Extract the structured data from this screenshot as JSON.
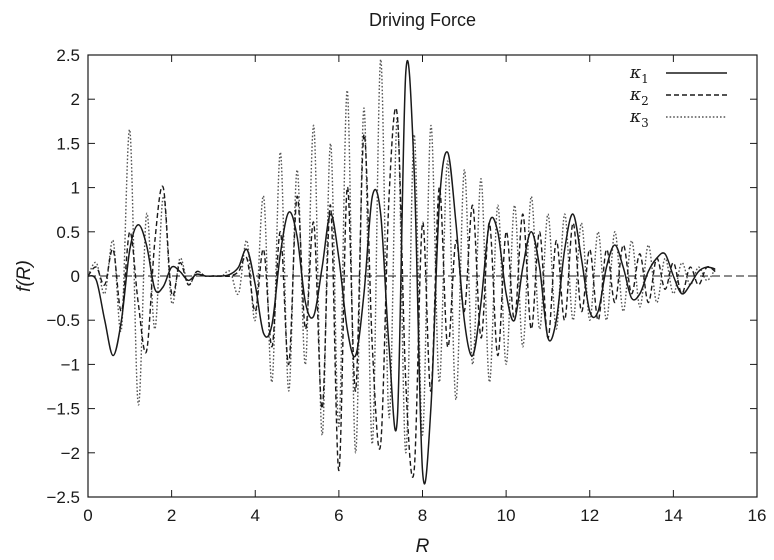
{
  "chart_data": {
    "type": "line",
    "title": "Driving Force",
    "xlabel": "R",
    "ylabel": "f(R)",
    "xlim": [
      0,
      16
    ],
    "ylim": [
      -2.5,
      2.5
    ],
    "xticks": [
      "0",
      "2",
      "4",
      "6",
      "8",
      "10",
      "12",
      "14",
      "16"
    ],
    "yticks": [
      "2.5",
      "2",
      "1.5",
      "1",
      "0.5",
      "0",
      "−0.5",
      "−1",
      "−1.5",
      "−2",
      "−2.5"
    ],
    "grid": false,
    "legend_position": "top-right",
    "series": [
      {
        "name": "κ1",
        "name_symbol": "κ",
        "name_sub": "1",
        "style": "solid",
        "x": [
          0.0,
          0.2,
          0.4,
          0.6,
          0.8,
          1.0,
          1.2,
          1.4,
          1.6,
          1.8,
          2.0,
          2.2,
          2.4,
          2.6,
          2.8,
          3.0,
          3.2,
          3.4,
          3.6,
          3.8,
          4.0,
          4.2,
          4.4,
          4.6,
          4.8,
          5.0,
          5.2,
          5.4,
          5.6,
          5.8,
          6.0,
          6.2,
          6.4,
          6.6,
          6.8,
          7.0,
          7.2,
          7.4,
          7.6,
          7.8,
          8.0,
          8.2,
          8.4,
          8.6,
          8.8,
          9.0,
          9.2,
          9.4,
          9.6,
          9.8,
          10.0,
          10.2,
          10.4,
          10.6,
          10.8,
          11.0,
          11.2,
          11.4,
          11.6,
          11.8,
          12.0,
          12.2,
          12.4,
          12.6,
          12.8,
          13.0,
          13.2,
          13.4,
          13.6,
          13.8,
          14.0,
          14.2,
          14.4,
          14.6,
          14.8,
          15.0
        ],
        "values": [
          0.0,
          -0.05,
          -0.5,
          -0.9,
          -0.5,
          0.3,
          0.58,
          0.35,
          -0.15,
          -0.12,
          0.1,
          0.05,
          -0.05,
          0.02,
          0.0,
          0.0,
          0.0,
          0.02,
          0.1,
          0.3,
          -0.1,
          -0.65,
          -0.55,
          0.25,
          0.72,
          0.45,
          -0.3,
          -0.45,
          0.1,
          0.7,
          0.2,
          -0.6,
          -0.9,
          -0.2,
          0.9,
          0.7,
          -0.8,
          -1.6,
          2.3,
          1.2,
          -2.2,
          -1.5,
          0.8,
          1.4,
          0.6,
          -0.5,
          -0.9,
          -0.3,
          0.6,
          0.5,
          -0.2,
          -0.5,
          0.1,
          0.5,
          0.1,
          -0.7,
          -0.5,
          0.3,
          0.7,
          0.2,
          -0.4,
          -0.4,
          0.1,
          0.35,
          0.1,
          -0.25,
          -0.2,
          0.05,
          0.2,
          0.25,
          0.0,
          -0.2,
          -0.1,
          0.05,
          0.1,
          0.08
        ]
      },
      {
        "name": "κ2",
        "name_symbol": "κ",
        "name_sub": "2",
        "style": "dashed",
        "x": [
          0.0,
          0.2,
          0.4,
          0.6,
          0.8,
          1.0,
          1.2,
          1.4,
          1.6,
          1.8,
          2.0,
          2.2,
          2.4,
          2.6,
          2.8,
          3.0,
          3.2,
          3.4,
          3.6,
          3.8,
          4.0,
          4.2,
          4.4,
          4.6,
          4.8,
          5.0,
          5.2,
          5.4,
          5.6,
          5.8,
          6.0,
          6.2,
          6.4,
          6.6,
          6.8,
          7.0,
          7.2,
          7.4,
          7.6,
          7.8,
          8.0,
          8.2,
          8.4,
          8.6,
          8.8,
          9.0,
          9.2,
          9.4,
          9.6,
          9.8,
          10.0,
          10.2,
          10.4,
          10.6,
          10.8,
          11.0,
          11.2,
          11.4,
          11.6,
          11.8,
          12.0,
          12.2,
          12.4,
          12.6,
          12.8,
          13.0,
          13.2,
          13.4,
          13.6,
          13.8,
          14.0,
          14.2,
          14.4,
          14.6,
          14.8,
          15.0
        ],
        "values": [
          0.0,
          0.1,
          -0.1,
          0.3,
          -0.4,
          0.5,
          -0.3,
          -0.85,
          0.4,
          1.0,
          -0.2,
          0.15,
          -0.1,
          0.05,
          0.0,
          0.0,
          0.0,
          0.0,
          0.05,
          0.2,
          -0.4,
          0.3,
          -0.8,
          0.5,
          -1.0,
          0.9,
          -0.6,
          0.6,
          -1.5,
          0.8,
          -2.2,
          1.0,
          -1.3,
          1.6,
          -0.8,
          -1.9,
          0.9,
          1.8,
          -1.2,
          -2.2,
          0.6,
          -1.3,
          1.0,
          -0.8,
          0.4,
          -0.4,
          0.8,
          -0.7,
          0.6,
          -0.9,
          0.5,
          -0.5,
          0.7,
          -0.6,
          0.5,
          -0.7,
          0.4,
          -0.5,
          0.6,
          -0.4,
          0.3,
          -0.5,
          0.3,
          -0.3,
          0.35,
          -0.2,
          0.25,
          -0.3,
          0.2,
          -0.15,
          0.15,
          -0.2,
          0.1,
          -0.1,
          0.1,
          0.05
        ]
      },
      {
        "name": "κ3",
        "name_symbol": "κ",
        "name_sub": "3",
        "style": "dotted",
        "x": [
          0.0,
          0.2,
          0.4,
          0.6,
          0.8,
          1.0,
          1.2,
          1.4,
          1.6,
          1.8,
          2.0,
          2.2,
          2.4,
          2.6,
          2.8,
          3.0,
          3.2,
          3.4,
          3.6,
          3.8,
          4.0,
          4.2,
          4.4,
          4.6,
          4.8,
          5.0,
          5.2,
          5.4,
          5.6,
          5.8,
          6.0,
          6.2,
          6.4,
          6.6,
          6.8,
          7.0,
          7.2,
          7.4,
          7.6,
          7.8,
          8.0,
          8.2,
          8.4,
          8.6,
          8.8,
          9.0,
          9.2,
          9.4,
          9.6,
          9.8,
          10.0,
          10.2,
          10.4,
          10.6,
          10.8,
          11.0,
          11.2,
          11.4,
          11.6,
          11.8,
          12.0,
          12.2,
          12.4,
          12.6,
          12.8,
          13.0,
          13.2,
          13.4,
          13.6,
          13.8,
          14.0,
          14.2,
          14.4,
          14.6,
          14.8,
          15.0
        ],
        "values": [
          0.0,
          0.15,
          -0.2,
          0.4,
          -0.6,
          1.65,
          -1.45,
          0.7,
          -0.6,
          0.9,
          -0.3,
          0.2,
          -0.1,
          0.05,
          0.0,
          0.0,
          0.0,
          0.05,
          -0.2,
          0.4,
          -0.5,
          0.9,
          -1.2,
          1.4,
          -1.3,
          1.2,
          -1.0,
          1.7,
          -1.8,
          1.5,
          -1.7,
          2.1,
          -2.0,
          1.9,
          -1.9,
          2.45,
          -1.6,
          1.8,
          -2.0,
          1.6,
          -1.8,
          1.7,
          -1.2,
          1.3,
          -1.4,
          1.2,
          -1.0,
          1.1,
          -1.2,
          0.8,
          -1.0,
          0.8,
          -0.8,
          0.9,
          -0.6,
          0.7,
          -0.6,
          0.7,
          -0.5,
          0.6,
          -0.5,
          0.5,
          -0.5,
          0.5,
          -0.4,
          0.4,
          -0.35,
          0.35,
          -0.3,
          0.2,
          -0.2,
          0.15,
          -0.1,
          0.1,
          -0.05,
          0.08
        ]
      }
    ]
  }
}
